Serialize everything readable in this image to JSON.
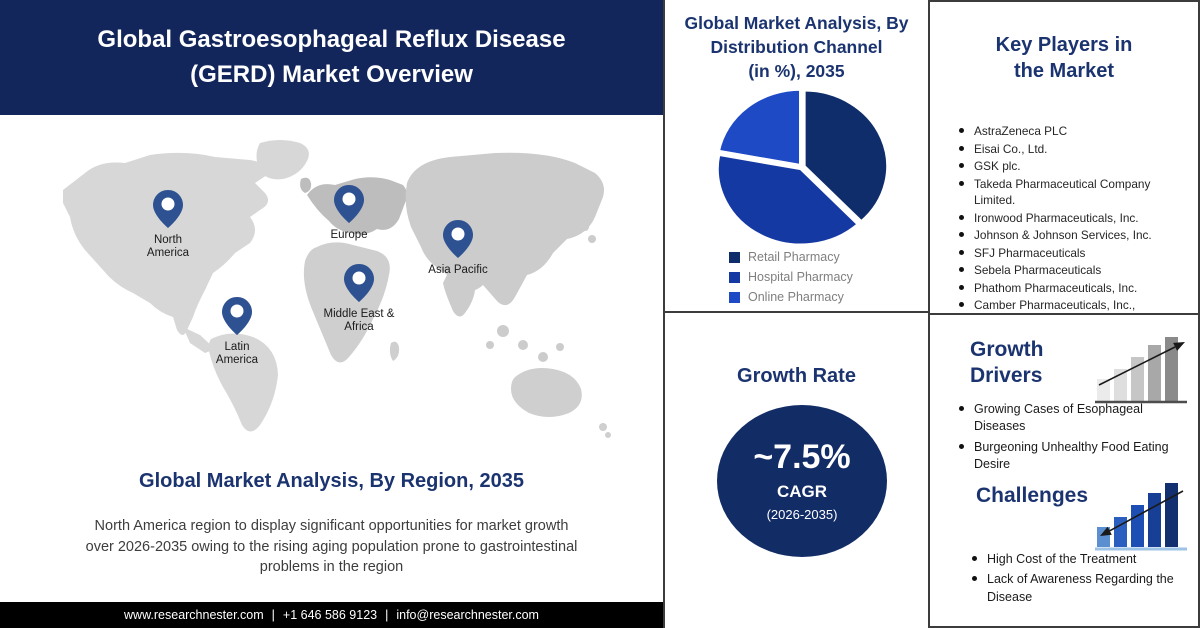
{
  "banner": {
    "title_lines": [
      "Global Gastroesophageal Reflux Disease",
      "(GERD) Market Overview"
    ]
  },
  "map": {
    "regions": [
      {
        "label": "North America"
      },
      {
        "label": "Europe"
      },
      {
        "label": "Asia Pacific"
      },
      {
        "label": "Middle East & Africa"
      },
      {
        "label": "Latin America"
      }
    ]
  },
  "region_section": {
    "heading": "Global Market Analysis, By Region, 2035",
    "body": "North America region to display significant opportunities for market growth over 2026-2035 owing to the rising aging population prone to gastrointestinal problems in the region"
  },
  "footer": {
    "website": "www.researchnester.com",
    "separator": "|",
    "phone": "+1 646 586 9123",
    "email": "info@researchnester.com"
  },
  "distribution": {
    "title_lines": [
      "Global Market Analysis, By",
      "Distribution Channel",
      "(in %), 2035"
    ]
  },
  "chart_data": {
    "type": "pie",
    "title": "Global Market Analysis, By Distribution Channel (in %), 2035",
    "labels": [
      "Retail Pharmacy",
      "Hospital Pharmacy",
      "Online Pharmacy"
    ],
    "values": [
      38,
      40,
      22
    ],
    "colors": [
      "#0f2d6b",
      "#1539a2",
      "#1f4ac5"
    ],
    "start_angle_deg": 0,
    "direction": "clockwise",
    "legend_position": "bottom-left"
  },
  "growth_rate": {
    "heading": "Growth Rate",
    "value": "~7.5%",
    "label": "CAGR",
    "period": "(2026-2035)"
  },
  "key_players": {
    "heading": "Key Players in the Market",
    "items": [
      "AstraZeneca PLC",
      "Eisai Co., Ltd.",
      "GSK plc.",
      "Takeda Pharmaceutical Company Limited.",
      "Ironwood Pharmaceuticals, Inc.",
      "Johnson & Johnson Services, Inc.",
      "SFJ Pharmaceuticals",
      "Sebela Pharmaceuticals",
      "Phathom Pharmaceuticals, Inc.",
      "Camber Pharmaceuticals, Inc.,"
    ]
  },
  "growth_drivers": {
    "heading": "Growth Drivers",
    "items": [
      "Growing Cases of Esophageal Diseases",
      "Burgeoning Unhealthy Food Eating Desire"
    ]
  },
  "challenges": {
    "heading": "Challenges",
    "items": [
      "High Cost of the Treatment",
      "Lack of Awareness Regarding the Disease"
    ]
  },
  "colors": {
    "banner_bg": "#13265c",
    "heading_navy": "#1b3470",
    "pin_blue": "#2d5191",
    "growth_circle_bg": "#122c66",
    "footer_bg": "#000000",
    "map_gray": "#d7d7d7",
    "europe_gray": "#bdbdbd"
  }
}
